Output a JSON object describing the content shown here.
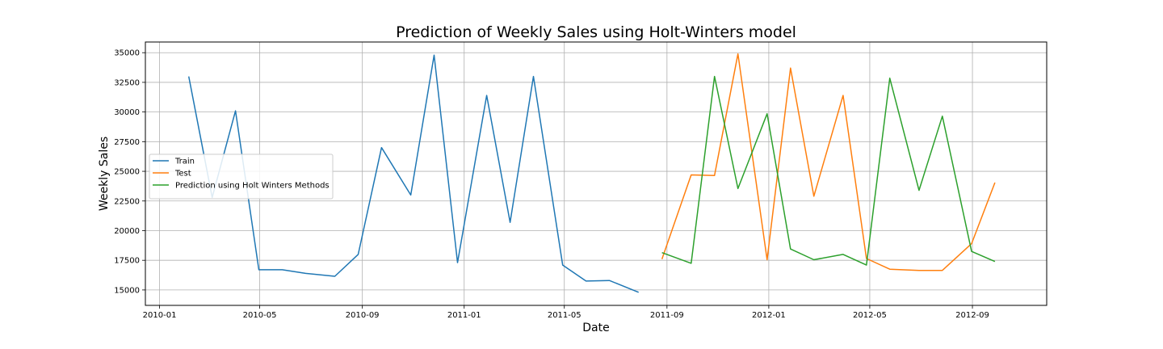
{
  "chart_data": {
    "type": "line",
    "title": "Prediction of Weekly Sales using Holt-Winters model",
    "xlabel": "Date",
    "ylabel": "Weekly Sales",
    "xlim": [
      "2009-12-15",
      "2012-11-29"
    ],
    "ylim": [
      13700,
      35900
    ],
    "x_ticks": [
      "2010-01",
      "2010-05",
      "2010-09",
      "2011-01",
      "2011-05",
      "2011-09",
      "2012-01",
      "2012-05",
      "2012-09"
    ],
    "y_ticks": [
      15000,
      17500,
      20000,
      22500,
      25000,
      27500,
      30000,
      32500,
      35000
    ],
    "grid": true,
    "legend_position": "center-left",
    "series": [
      {
        "name": "Train",
        "color": "#1f77b4",
        "x": [
          "2010-02-05",
          "2010-03-05",
          "2010-04-02",
          "2010-04-30",
          "2010-05-28",
          "2010-06-25",
          "2010-07-30",
          "2010-08-27",
          "2010-09-24",
          "2010-10-29",
          "2010-11-26",
          "2010-12-24",
          "2011-01-28",
          "2011-02-25",
          "2011-03-25",
          "2011-04-29",
          "2011-05-27",
          "2011-06-24",
          "2011-07-29"
        ],
        "y": [
          33000,
          22800,
          30100,
          16700,
          16700,
          16400,
          16150,
          18000,
          27000,
          23000,
          34800,
          17300,
          31400,
          20700,
          33000,
          17100,
          15750,
          15800,
          14800
        ]
      },
      {
        "name": "Test",
        "color": "#ff7f0e",
        "x": [
          "2011-08-26",
          "2011-09-30",
          "2011-10-28",
          "2011-11-25",
          "2011-12-30",
          "2012-01-27",
          "2012-02-24",
          "2012-03-30",
          "2012-04-27",
          "2012-05-25",
          "2012-06-29",
          "2012-07-27",
          "2012-08-31",
          "2012-09-28"
        ],
        "y": [
          17600,
          24700,
          24650,
          34900,
          17550,
          33700,
          22900,
          31400,
          17650,
          16750,
          16650,
          16650,
          18900,
          24050
        ]
      },
      {
        "name": "Prediction using Holt Winters Methods",
        "color": "#2ca02c",
        "x": [
          "2011-08-26",
          "2011-09-30",
          "2011-10-28",
          "2011-11-25",
          "2011-12-30",
          "2012-01-27",
          "2012-02-24",
          "2012-03-30",
          "2012-04-27",
          "2012-05-25",
          "2012-06-29",
          "2012-07-27",
          "2012-08-31",
          "2012-09-28"
        ],
        "y": [
          18150,
          17250,
          33000,
          23550,
          29850,
          18450,
          17550,
          18000,
          17100,
          32850,
          23400,
          29650,
          18250,
          17400
        ]
      }
    ]
  }
}
